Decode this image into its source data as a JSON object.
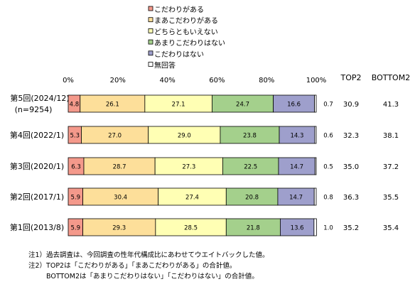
{
  "chart_data": {
    "type": "bar",
    "orientation": "horizontal-stacked-100",
    "legend_placement": "top",
    "series": [
      {
        "name": "こだわりがある",
        "color": "#f4998b"
      },
      {
        "name": "まあこだわりがある",
        "color": "#fddf9a"
      },
      {
        "name": "どちらともいえない",
        "color": "#ffffb4"
      },
      {
        "name": "あまりこだわりはない",
        "color": "#a4d08c"
      },
      {
        "name": "こだわりはない",
        "color": "#9e9fcc"
      },
      {
        "name": "無回答",
        "color": "#ffffff"
      }
    ],
    "rows": [
      {
        "label": "第5回(2024/12)",
        "sublabel": "(n=9254)",
        "values": [
          4.8,
          26.1,
          27.1,
          24.7,
          16.6,
          0.7
        ],
        "top2": "30.9",
        "bottom2": "41.3"
      },
      {
        "label": "第4回(2022/1)",
        "values": [
          5.3,
          27.0,
          29.0,
          23.8,
          14.3,
          0.6
        ],
        "top2": "32.3",
        "bottom2": "38.1"
      },
      {
        "label": "第3回(2020/1)",
        "values": [
          6.3,
          28.7,
          27.3,
          22.5,
          14.7,
          0.5
        ],
        "top2": "35.0",
        "bottom2": "37.2"
      },
      {
        "label": "第2回(2017/1)",
        "values": [
          5.9,
          30.4,
          27.4,
          20.8,
          14.7,
          0.8
        ],
        "top2": "36.3",
        "bottom2": "35.5"
      },
      {
        "label": "第1回(2013/8)",
        "values": [
          5.9,
          29.3,
          28.5,
          21.8,
          13.6,
          1.0
        ],
        "top2": "35.2",
        "bottom2": "35.4"
      }
    ],
    "x_ticks": [
      "0%",
      "20%",
      "40%",
      "60%",
      "80%",
      "100%"
    ],
    "xlim": [
      0,
      100
    ],
    "top2_header": "TOP2",
    "bottom2_header": "BOTTOM2"
  },
  "notes": [
    "注1）過去調査は、今回調査の性年代構成比にあわせてウエイトバックした値。",
    "注2）TOP2は「こだわりがある」「まあこだわりがある」の合計値。",
    "BOTTOM2は「あまりこだわりはない」「こだわりはない」の合計値。"
  ]
}
